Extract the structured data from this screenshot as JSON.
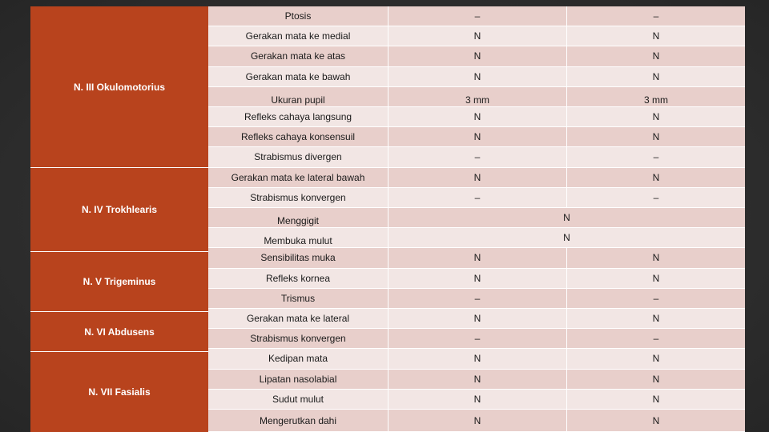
{
  "nerves": [
    {
      "label": "N. III Okulomotorius"
    },
    {
      "label": "N. IV Trokhlearis"
    },
    {
      "label": "N. V Trigeminus"
    },
    {
      "label": "N. VI Abdusens"
    },
    {
      "label": "N. VII Fasialis"
    }
  ],
  "rows": [
    {
      "param": "Ptosis",
      "v1": "–",
      "v2": "–"
    },
    {
      "param": "Gerakan mata ke medial",
      "v1": "N",
      "v2": "N"
    },
    {
      "param": "Gerakan mata ke atas",
      "v1": "N",
      "v2": "N"
    },
    {
      "param": "Gerakan mata ke bawah",
      "v1": "N",
      "v2": "N"
    },
    {
      "param": "Ukuran pupil",
      "v1": "3 mm",
      "v2": "3 mm"
    },
    {
      "param": "Refleks cahaya langsung",
      "v1": "N",
      "v2": "N"
    },
    {
      "param": "Refleks cahaya konsensuil",
      "v1": "N",
      "v2": "N"
    },
    {
      "param": "Strabismus divergen",
      "v1": "–",
      "v2": "–"
    },
    {
      "param": "Gerakan mata ke lateral bawah",
      "v1": "N",
      "v2": "N"
    },
    {
      "param": "Strabismus konvergen",
      "v1": "–",
      "v2": "–"
    },
    {
      "param": "Menggigit",
      "merged": "N"
    },
    {
      "param": "Membuka mulut",
      "merged": "N"
    },
    {
      "param": "Sensibilitas muka",
      "v1": "N",
      "v2": "N"
    },
    {
      "param": "Refleks kornea",
      "v1": "N",
      "v2": "N"
    },
    {
      "param": "Trismus",
      "v1": "–",
      "v2": "–"
    },
    {
      "param": "Gerakan mata ke lateral",
      "v1": "N",
      "v2": "N"
    },
    {
      "param": "Strabismus konvergen",
      "v1": "–",
      "v2": "–"
    },
    {
      "param": "Kedipan mata",
      "v1": "N",
      "v2": "N"
    },
    {
      "param": "Lipatan nasolabial",
      "v1": "N",
      "v2": "N"
    },
    {
      "param": "Sudut mulut",
      "v1": "N",
      "v2": "N"
    },
    {
      "param": "Mengerutkan dahi",
      "v1": "N",
      "v2": "N"
    }
  ]
}
